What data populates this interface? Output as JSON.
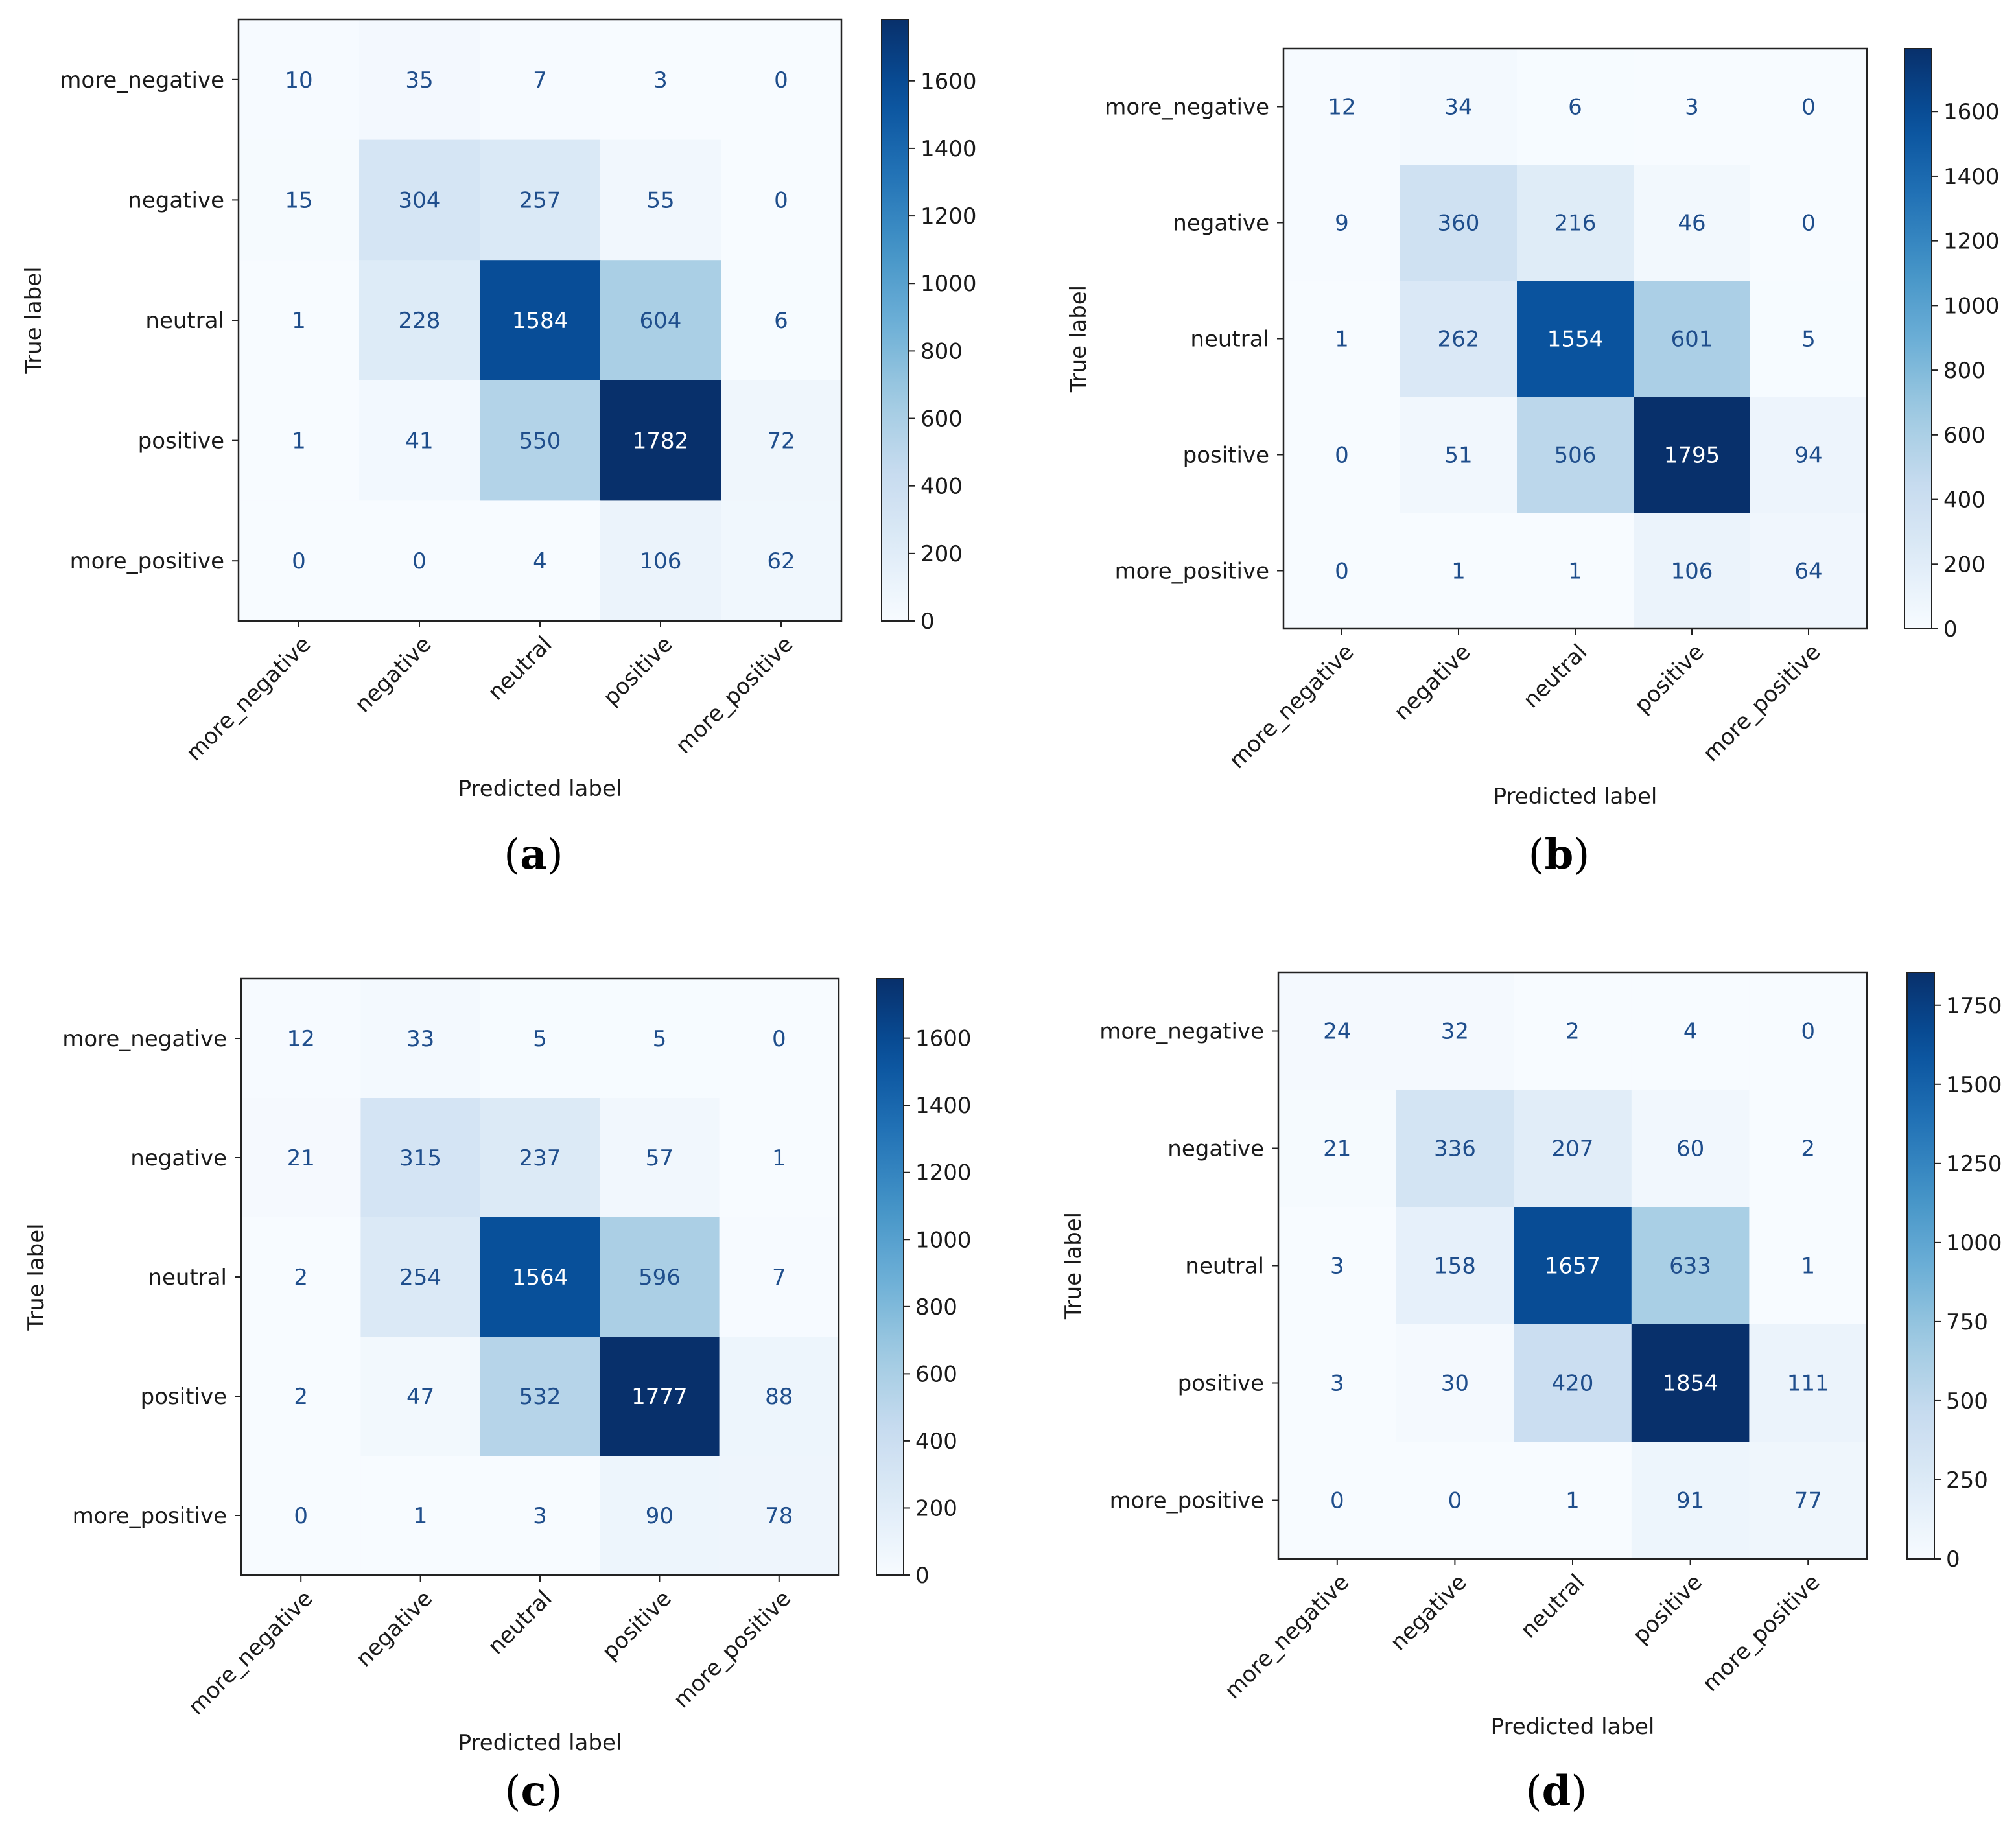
{
  "chart_data": [
    {
      "type": "heatmap",
      "caption": "a",
      "xlabel": "Predicted label",
      "ylabel": "True label",
      "x_categories": [
        "more_negative",
        "negative",
        "neutral",
        "positive",
        "more_positive"
      ],
      "y_categories": [
        "more_negative",
        "negative",
        "neutral",
        "positive",
        "more_positive"
      ],
      "values": [
        [
          10,
          35,
          7,
          3,
          0
        ],
        [
          15,
          304,
          257,
          55,
          0
        ],
        [
          1,
          228,
          1584,
          604,
          6
        ],
        [
          1,
          41,
          550,
          1782,
          72
        ],
        [
          0,
          0,
          4,
          106,
          62
        ]
      ],
      "colormap": "Blues",
      "colorbar_range": [
        0,
        1782
      ],
      "colorbar_ticks": [
        0,
        200,
        400,
        600,
        800,
        1000,
        1200,
        1400,
        1600
      ]
    },
    {
      "type": "heatmap",
      "caption": "b",
      "xlabel": "Predicted label",
      "ylabel": "True label",
      "x_categories": [
        "more_negative",
        "negative",
        "neutral",
        "positive",
        "more_positive"
      ],
      "y_categories": [
        "more_negative",
        "negative",
        "neutral",
        "positive",
        "more_positive"
      ],
      "values": [
        [
          12,
          34,
          6,
          3,
          0
        ],
        [
          9,
          360,
          216,
          46,
          0
        ],
        [
          1,
          262,
          1554,
          601,
          5
        ],
        [
          0,
          51,
          506,
          1795,
          94
        ],
        [
          0,
          1,
          1,
          106,
          64
        ]
      ],
      "colormap": "Blues",
      "colorbar_range": [
        0,
        1795
      ],
      "colorbar_ticks": [
        0,
        200,
        400,
        600,
        800,
        1000,
        1200,
        1400,
        1600
      ]
    },
    {
      "type": "heatmap",
      "caption": "c",
      "xlabel": "Predicted label",
      "ylabel": "True label",
      "x_categories": [
        "more_negative",
        "negative",
        "neutral",
        "positive",
        "more_positive"
      ],
      "y_categories": [
        "more_negative",
        "negative",
        "neutral",
        "positive",
        "more_positive"
      ],
      "values": [
        [
          12,
          33,
          5,
          5,
          0
        ],
        [
          21,
          315,
          237,
          57,
          1
        ],
        [
          2,
          254,
          1564,
          596,
          7
        ],
        [
          2,
          47,
          532,
          1777,
          88
        ],
        [
          0,
          1,
          3,
          90,
          78
        ]
      ],
      "colormap": "Blues",
      "colorbar_range": [
        0,
        1777
      ],
      "colorbar_ticks": [
        0,
        200,
        400,
        600,
        800,
        1000,
        1200,
        1400,
        1600
      ]
    },
    {
      "type": "heatmap",
      "caption": "d",
      "xlabel": "Predicted label",
      "ylabel": "True label",
      "x_categories": [
        "more_negative",
        "negative",
        "neutral",
        "positive",
        "more_positive"
      ],
      "y_categories": [
        "more_negative",
        "negative",
        "neutral",
        "positive",
        "more_positive"
      ],
      "values": [
        [
          24,
          32,
          2,
          4,
          0
        ],
        [
          21,
          336,
          207,
          60,
          2
        ],
        [
          3,
          158,
          1657,
          633,
          1
        ],
        [
          3,
          30,
          420,
          1854,
          111
        ],
        [
          0,
          0,
          1,
          91,
          77
        ]
      ],
      "colormap": "Blues",
      "colorbar_range": [
        0,
        1854
      ],
      "colorbar_ticks": [
        0,
        250,
        500,
        750,
        1000,
        1250,
        1500,
        1750
      ]
    }
  ]
}
